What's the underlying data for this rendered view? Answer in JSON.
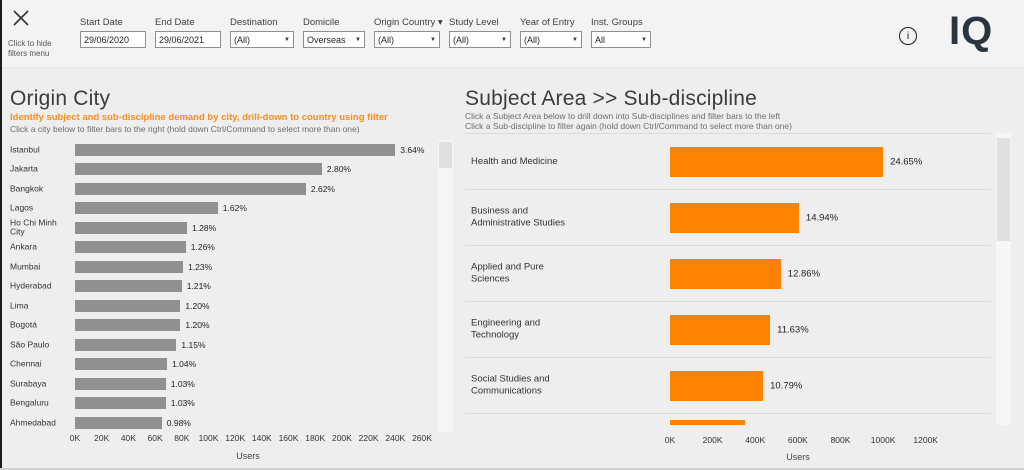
{
  "header": {
    "hide_filters_text": "Click to hide filters menu",
    "logo": "IQ",
    "filters": [
      {
        "label": "Start Date",
        "value": "29/06/2020",
        "type": "input"
      },
      {
        "label": "End Date",
        "value": "29/06/2021",
        "type": "input"
      },
      {
        "label": "Destination",
        "value": "(All)",
        "type": "dropdown"
      },
      {
        "label": "Domicile",
        "value": "Overseas",
        "type": "dropdown"
      },
      {
        "label": "Origin Country ▾",
        "value": "(All)",
        "type": "dropdown"
      },
      {
        "label": "Study Level",
        "value": "(All)",
        "type": "dropdown"
      },
      {
        "label": "Year of Entry",
        "value": "(All)",
        "type": "dropdown"
      },
      {
        "label": "Inst. Groups",
        "value": "All",
        "type": "dropdown"
      }
    ]
  },
  "icons": {
    "close": "✕",
    "info": "i",
    "dropdown_caret": "▼"
  },
  "colors": {
    "page_bg": "#efeeee",
    "header_bg": "#f4f3f3",
    "bar_gray": "#8e9092",
    "bar_orange": "#ff8300",
    "accent_orange_text": "#f78f1e",
    "title_text": "#3c3c3c",
    "logo_navy": "#2b3540"
  },
  "chart_data": [
    {
      "type": "bar",
      "orientation": "horizontal",
      "title": "Origin City",
      "subtitle_highlight": "Identify subject and sub-discipline demand by city, drill-down to country using filter",
      "subtitle": "Click a city below to filter bars to the right (hold down Ctrl/Command to select more than one)",
      "categories": [
        "Istanbul",
        "Jakarta",
        "Bangkok",
        "Lagos",
        "Ho Chi Minh City",
        "Ankara",
        "Mumbai",
        "Hyderabad",
        "Lima",
        "Bogotá",
        "São Paulo",
        "Chennai",
        "Surabaya",
        "Bengaluru",
        "Ahmedabad"
      ],
      "values_pct": [
        3.64,
        2.8,
        2.62,
        1.62,
        1.28,
        1.26,
        1.23,
        1.21,
        1.2,
        1.2,
        1.15,
        1.04,
        1.03,
        1.03,
        0.98
      ],
      "users_k_est": [
        240,
        185,
        173,
        107,
        84,
        83,
        81,
        80,
        79,
        79,
        76,
        69,
        68,
        68,
        65
      ],
      "xlabel": "Users",
      "x_ticks": [
        "0K",
        "20K",
        "40K",
        "60K",
        "80K",
        "100K",
        "120K",
        "140K",
        "160K",
        "180K",
        "200K",
        "220K",
        "240K",
        "260K"
      ],
      "xlim_k": [
        0,
        260
      ],
      "grid": false,
      "legend": "none",
      "bar_color": "#8e9092"
    },
    {
      "type": "bar",
      "orientation": "horizontal",
      "title": "Subject Area >> Sub-discipline",
      "subtitle_line1": "Click a Subject Area below to drill down into Sub-disciplines and filter bars to the left",
      "subtitle_line2": "Click a Sub-discipline to filter again (hold down Ctrl/Command to select more than one)",
      "categories": [
        "Health and Medicine",
        "Business and Administrative Studies",
        "Applied and Pure Sciences",
        "Engineering and Technology",
        "Social Studies and Communications",
        ""
      ],
      "values_pct": [
        24.65,
        14.94,
        12.86,
        11.63,
        10.79,
        null
      ],
      "users_k_est": [
        1000,
        605,
        520,
        470,
        437,
        350
      ],
      "xlabel": "Users",
      "x_ticks": [
        "0K",
        "200K",
        "400K",
        "600K",
        "800K",
        "1000K",
        "1200K"
      ],
      "xlim_k": [
        0,
        1300
      ],
      "grid": false,
      "legend": "none",
      "bar_color": "#ff8300",
      "note": "last row partially scrolled out of view"
    }
  ]
}
